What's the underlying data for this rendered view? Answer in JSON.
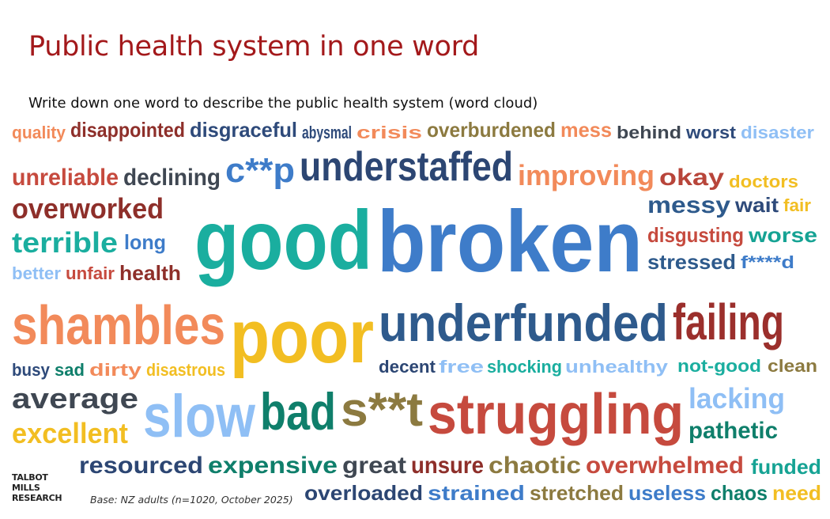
{
  "title": "Public health system in one word",
  "subtitle": "Write down one word to describe the public health system (word cloud)",
  "logo": {
    "line1": "TALBOT",
    "line2": "MILLS",
    "line3": "RESEARCH"
  },
  "base_note": "Base: NZ adults (n=1020, October 2025)",
  "colors": {
    "title": "#A3191B"
  },
  "chart_data": {
    "type": "word_cloud",
    "words": [
      {
        "text": "quality",
        "color": "#F28A5A"
      },
      {
        "text": "disappointed",
        "color": "#8E2F2A"
      },
      {
        "text": "disgraceful",
        "color": "#2E4A7A"
      },
      {
        "text": "abysmal",
        "color": "#2E4A7A"
      },
      {
        "text": "crisis",
        "color": "#F28A5A"
      },
      {
        "text": "overburdened",
        "color": "#8C7A40"
      },
      {
        "text": "unreliable",
        "color": "#C64A3E"
      },
      {
        "text": "declining",
        "color": "#3F4752"
      },
      {
        "text": "c**p",
        "color": "#3E7CC9"
      },
      {
        "text": "understaffed",
        "color": "#2C4673"
      },
      {
        "text": "improving",
        "color": "#F28A5A"
      },
      {
        "text": "mess",
        "color": "#F28A5A"
      },
      {
        "text": "behind",
        "color": "#3F4752"
      },
      {
        "text": "okay",
        "color": "#B8453A"
      },
      {
        "text": "worst",
        "color": "#2E4A7A"
      },
      {
        "text": "overworked",
        "color": "#8E2F2A"
      },
      {
        "text": "good",
        "color": "#1AAE9F"
      },
      {
        "text": "shambles",
        "color": "#F28A5A"
      },
      {
        "text": "disaster",
        "color": "#8FBFF5"
      },
      {
        "text": "long",
        "color": "#3E7CC9"
      },
      {
        "text": "terrible",
        "color": "#1AAE9F"
      },
      {
        "text": "s**t",
        "color": "#8C7A40"
      },
      {
        "text": "lacking",
        "color": "#8FBFF5"
      },
      {
        "text": "worse",
        "color": "#16A394"
      },
      {
        "text": "better",
        "color": "#8FBFF5"
      },
      {
        "text": "unfair",
        "color": "#C64A3E"
      },
      {
        "text": "unsure",
        "color": "#8E2F2A"
      },
      {
        "text": "doctors",
        "color": "#F2BE22"
      },
      {
        "text": "broken",
        "color": "#3E7CC9"
      },
      {
        "text": "failing",
        "color": "#9B2F2C"
      },
      {
        "text": "messy",
        "color": "#2E5A8C"
      },
      {
        "text": "disgusting",
        "color": "#C64A3E"
      },
      {
        "text": "health",
        "color": "#8E2F2A"
      },
      {
        "text": "busy",
        "color": "#2E4A7A"
      },
      {
        "text": "funded",
        "color": "#16A394"
      },
      {
        "text": "stressed",
        "color": "#2E5A8C"
      },
      {
        "text": "average",
        "color": "#3F4752"
      },
      {
        "text": "bad",
        "color": "#0F7F6B"
      },
      {
        "text": "sad",
        "color": "#0F7F6B"
      },
      {
        "text": "underfunded",
        "color": "#2E5A8C"
      },
      {
        "text": "wait",
        "color": "#2E4A7A"
      },
      {
        "text": "fair",
        "color": "#F2BE22"
      },
      {
        "text": "f****d",
        "color": "#3E7CC9"
      },
      {
        "text": "excellent",
        "color": "#F2BE22"
      },
      {
        "text": "slow",
        "color": "#8FBFF5"
      },
      {
        "text": "poor",
        "color": "#F2BE22"
      },
      {
        "text": "resourced",
        "color": "#2C4673"
      },
      {
        "text": "pathetic",
        "color": "#0F7F6B"
      },
      {
        "text": "disastrous",
        "color": "#F2BE22"
      },
      {
        "text": "great",
        "color": "#3F4752"
      },
      {
        "text": "free",
        "color": "#8FBFF5"
      },
      {
        "text": "useless",
        "color": "#3E7CC9"
      },
      {
        "text": "expensive",
        "color": "#0F7F6B"
      },
      {
        "text": "clean",
        "color": "#8C7A40"
      },
      {
        "text": "need",
        "color": "#F2BE22"
      },
      {
        "text": "shocking",
        "color": "#1AAE9F"
      },
      {
        "text": "chaotic",
        "color": "#8C7A40"
      },
      {
        "text": "struggling",
        "color": "#C64A3E"
      },
      {
        "text": "dirty",
        "color": "#F28A5A"
      },
      {
        "text": "overloaded",
        "color": "#2C4673"
      },
      {
        "text": "not-good",
        "color": "#1AAE9F"
      },
      {
        "text": "unhealthy",
        "color": "#8FBFF5"
      },
      {
        "text": "chaos",
        "color": "#0F7F6B"
      },
      {
        "text": "strained",
        "color": "#3E7CC9"
      },
      {
        "text": "decent",
        "color": "#2C4673"
      },
      {
        "text": "stretched",
        "color": "#8C7A40"
      },
      {
        "text": "overwhelmed",
        "color": "#C64A3E"
      }
    ]
  }
}
